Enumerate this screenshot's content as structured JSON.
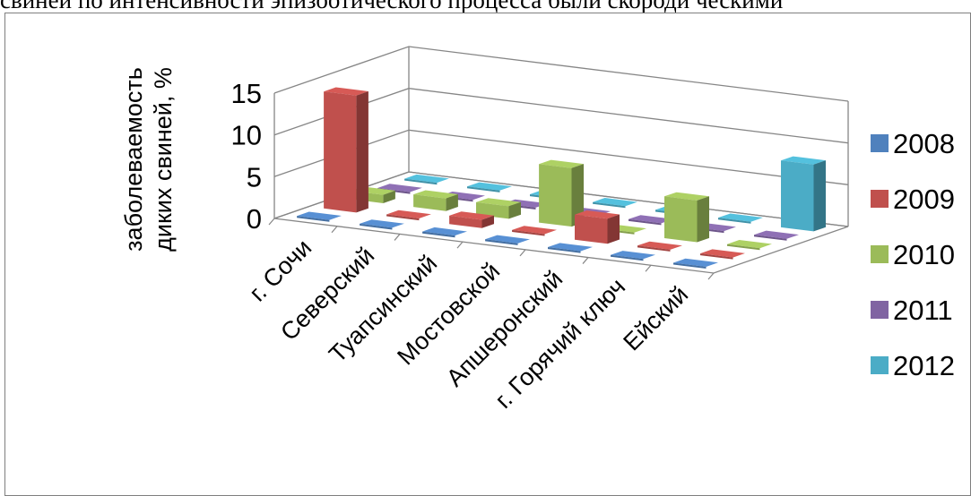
{
  "document": {
    "heading_fragment": "свиней по интенсивности эпизоотического процесса были скороди ческими"
  },
  "chart_data": {
    "type": "bar",
    "subtype": "3d-column",
    "title": "",
    "ylabel_lines": [
      "заболеваемость",
      "диких свиней, %"
    ],
    "xlabel": "",
    "ylim": [
      0,
      15
    ],
    "yticks": [
      "0",
      "5",
      "10",
      "15"
    ],
    "grid": true,
    "legend_position": "right",
    "categories": [
      "г. Сочи",
      "Северский",
      "Туапсинский",
      "Мостовской",
      "Апшеронский",
      "г. Горячий ключ",
      "Ейский"
    ],
    "series": [
      {
        "name": "2008",
        "color": "#4f81bd",
        "values": [
          0,
          0,
          0,
          0,
          0,
          0,
          0
        ]
      },
      {
        "name": "2009",
        "color": "#c0504d",
        "values": [
          14,
          0,
          1,
          0,
          3,
          0,
          0
        ]
      },
      {
        "name": "2010",
        "color": "#9bbb59",
        "values": [
          1,
          1.5,
          1.5,
          7,
          0,
          5,
          0
        ]
      },
      {
        "name": "2011",
        "color": "#8064a2",
        "values": [
          0,
          0,
          0,
          0,
          0,
          0,
          0
        ]
      },
      {
        "name": "2012",
        "color": "#4bacc6",
        "values": [
          0,
          0,
          0,
          0,
          0,
          0,
          8
        ]
      }
    ]
  }
}
